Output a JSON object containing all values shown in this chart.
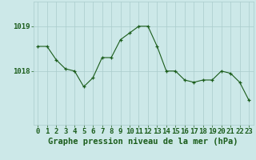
{
  "x": [
    0,
    1,
    2,
    3,
    4,
    5,
    6,
    7,
    8,
    9,
    10,
    11,
    12,
    13,
    14,
    15,
    16,
    17,
    18,
    19,
    20,
    21,
    22,
    23
  ],
  "y": [
    1018.55,
    1018.55,
    1018.25,
    1018.05,
    1018.0,
    1017.65,
    1017.85,
    1018.3,
    1018.3,
    1018.7,
    1018.85,
    1019.0,
    1019.0,
    1018.55,
    1018.0,
    1018.0,
    1017.8,
    1017.75,
    1017.8,
    1017.8,
    1018.0,
    1017.95,
    1017.75,
    1017.35
  ],
  "line_color": "#1a5c1a",
  "marker_color": "#1a5c1a",
  "bg_color": "#cce8e8",
  "grid_color": "#aacccc",
  "axis_label_color": "#1a5c1a",
  "tick_label_color": "#1a5c1a",
  "xlabel": "Graphe pression niveau de la mer (hPa)",
  "yticks": [
    1018,
    1019
  ],
  "ylim": [
    1016.8,
    1019.55
  ],
  "xlim": [
    -0.5,
    23.5
  ],
  "label_fontsize": 6.5,
  "xlabel_fontsize": 7.5
}
